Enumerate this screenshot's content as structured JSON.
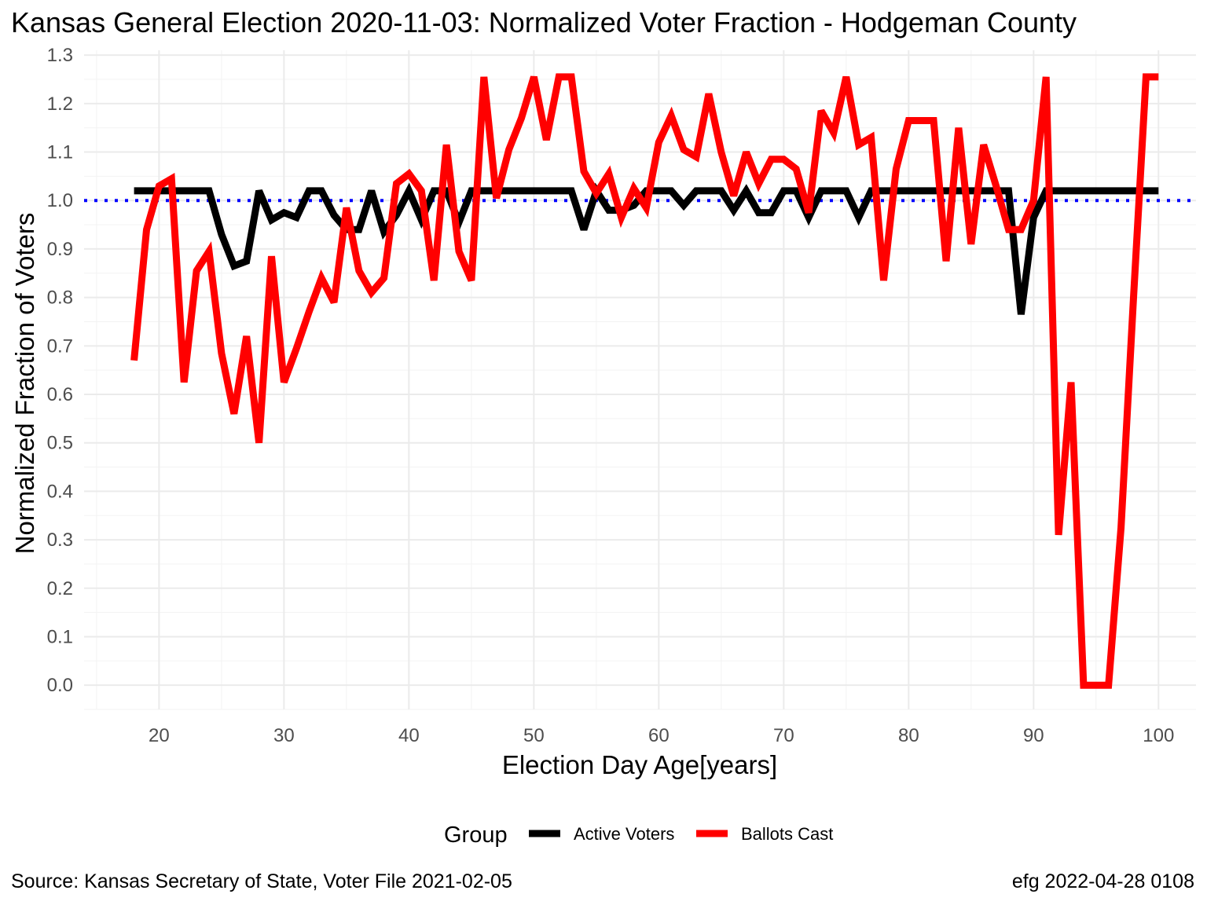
{
  "title": "Kansas General Election 2020-11-03:  Normalized Voter Fraction - Hodgeman County",
  "caption_left": "Source:  Kansas Secretary of State, Voter File  2021-02-05",
  "caption_right": "efg 2022-04-28 0108",
  "chart_data": {
    "type": "line",
    "xlabel": "Election Day Age[years]",
    "ylabel": "Normalized Fraction of Voters",
    "xlim": [
      14,
      103
    ],
    "ylim": [
      -0.05,
      1.31
    ],
    "x_ticks": [
      20,
      30,
      40,
      50,
      60,
      70,
      80,
      90,
      100
    ],
    "y_ticks": [
      0.0,
      0.1,
      0.2,
      0.3,
      0.4,
      0.5,
      0.6,
      0.7,
      0.8,
      0.9,
      1.0,
      1.1,
      1.2,
      1.3
    ],
    "grid": true,
    "reference_line": {
      "y": 1.0,
      "style": "dotted",
      "color": "#0000ff"
    },
    "legend": {
      "title": "Group",
      "position": "bottom",
      "entries": [
        {
          "label": "Active Voters",
          "color": "#000000"
        },
        {
          "label": "Ballots Cast",
          "color": "#ff0000"
        }
      ]
    },
    "series": [
      {
        "name": "Active Voters",
        "color": "#000000",
        "x": [
          18,
          19,
          20,
          21,
          22,
          23,
          24,
          25,
          26,
          27,
          28,
          29,
          30,
          31,
          32,
          33,
          34,
          35,
          36,
          37,
          38,
          39,
          40,
          41,
          42,
          43,
          44,
          45,
          46,
          47,
          48,
          49,
          50,
          51,
          52,
          53,
          54,
          55,
          56,
          57,
          58,
          59,
          60,
          61,
          62,
          63,
          64,
          65,
          66,
          67,
          68,
          69,
          70,
          71,
          72,
          73,
          74,
          75,
          76,
          77,
          78,
          79,
          80,
          81,
          82,
          83,
          84,
          85,
          86,
          87,
          88,
          89,
          90,
          91,
          92,
          93,
          94,
          95,
          96,
          97,
          98,
          99,
          100
        ],
        "y": [
          1.02,
          1.02,
          1.02,
          1.02,
          1.02,
          1.02,
          1.02,
          0.93,
          0.865,
          0.875,
          1.02,
          0.96,
          0.975,
          0.965,
          1.02,
          1.02,
          0.97,
          0.94,
          0.94,
          1.02,
          0.935,
          0.97,
          1.02,
          0.96,
          1.02,
          1.02,
          0.955,
          1.02,
          1.02,
          1.02,
          1.02,
          1.02,
          1.02,
          1.02,
          1.02,
          1.02,
          0.94,
          1.02,
          0.98,
          0.98,
          0.99,
          1.02,
          1.02,
          1.02,
          0.99,
          1.02,
          1.02,
          1.02,
          0.98,
          1.02,
          0.975,
          0.975,
          1.02,
          1.02,
          0.965,
          1.02,
          1.02,
          1.02,
          0.965,
          1.02,
          1.02,
          1.02,
          1.02,
          1.02,
          1.02,
          1.02,
          1.02,
          1.02,
          1.02,
          1.02,
          1.02,
          0.765,
          0.965,
          1.02,
          1.02,
          1.02,
          1.02,
          1.02,
          1.02,
          1.02,
          1.02,
          1.02,
          1.02
        ]
      },
      {
        "name": "Ballots Cast",
        "color": "#ff0000",
        "x": [
          18,
          19,
          20,
          21,
          22,
          23,
          24,
          25,
          26,
          27,
          28,
          29,
          30,
          31,
          32,
          33,
          34,
          35,
          36,
          37,
          38,
          39,
          40,
          41,
          42,
          43,
          44,
          45,
          46,
          47,
          48,
          49,
          50,
          51,
          52,
          53,
          54,
          55,
          56,
          57,
          58,
          59,
          60,
          61,
          62,
          63,
          64,
          65,
          66,
          67,
          68,
          69,
          70,
          71,
          72,
          73,
          74,
          75,
          76,
          77,
          78,
          79,
          80,
          81,
          82,
          83,
          84,
          85,
          86,
          87,
          88,
          89,
          90,
          91,
          92,
          93,
          94,
          95,
          96,
          97,
          98,
          99,
          100
        ],
        "y": [
          0.67,
          0.94,
          1.03,
          1.045,
          0.625,
          0.855,
          0.895,
          0.685,
          0.56,
          0.72,
          0.5,
          0.885,
          0.625,
          0.695,
          0.77,
          0.84,
          0.79,
          0.985,
          0.855,
          0.81,
          0.84,
          1.035,
          1.055,
          1.02,
          0.835,
          1.115,
          0.895,
          0.835,
          1.255,
          1.005,
          1.105,
          1.17,
          1.255,
          1.125,
          1.255,
          1.255,
          1.06,
          1.015,
          1.055,
          0.965,
          1.025,
          0.985,
          1.12,
          1.175,
          1.105,
          1.09,
          1.22,
          1.1,
          1.01,
          1.1,
          1.035,
          1.085,
          1.085,
          1.065,
          0.975,
          1.185,
          1.14,
          1.255,
          1.115,
          1.13,
          0.835,
          1.065,
          1.165,
          1.165,
          1.165,
          0.875,
          1.15,
          0.91,
          1.115,
          1.03,
          0.94,
          0.94,
          1.0,
          1.255,
          0.31,
          0.625,
          0.0,
          0.0,
          0.0,
          0.325,
          0.8,
          1.255,
          1.255
        ]
      }
    ]
  }
}
